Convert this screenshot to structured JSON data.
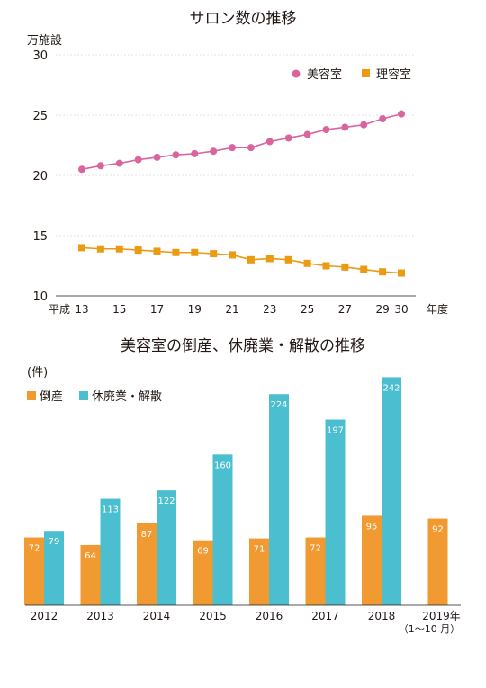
{
  "chart_data": [
    {
      "type": "line",
      "title": "サロン数の推移",
      "ylabel": "万施設",
      "xlabel": "年度",
      "era_label": "平成",
      "ylim": [
        10,
        30
      ],
      "yticks": [
        10,
        15,
        20,
        25,
        30
      ],
      "grid": true,
      "legend": "top-right",
      "x": [
        13,
        14,
        15,
        16,
        17,
        18,
        19,
        20,
        21,
        22,
        23,
        24,
        25,
        26,
        27,
        28,
        29,
        30
      ],
      "xtick_labels": [
        "13",
        "15",
        "17",
        "19",
        "21",
        "23",
        "25",
        "27",
        "29",
        "30"
      ],
      "series": [
        {
          "name": "美容室",
          "color": "#d9649e",
          "values": [
            20.5,
            20.8,
            21.0,
            21.3,
            21.5,
            21.7,
            21.8,
            22.0,
            22.3,
            22.3,
            22.8,
            23.1,
            23.4,
            23.8,
            24.0,
            24.2,
            24.7,
            25.1
          ]
        },
        {
          "name": "理容室",
          "color": "#eb9b12",
          "values": [
            14.0,
            13.9,
            13.9,
            13.8,
            13.7,
            13.6,
            13.6,
            13.5,
            13.4,
            13.0,
            13.1,
            13.0,
            12.7,
            12.5,
            12.4,
            12.2,
            12.0,
            11.9
          ]
        }
      ]
    },
    {
      "type": "bar",
      "title": "美容室の倒産、休廃業・解散の推移",
      "ylabel": "(件)",
      "legend": "top-left",
      "ylim": [
        0,
        250
      ],
      "categories": [
        "2012",
        "2013",
        "2014",
        "2015",
        "2016",
        "2017",
        "2018",
        "2019年"
      ],
      "category_note": "（1〜10 月）",
      "series": [
        {
          "name": "倒産",
          "color": "#f29a32",
          "values": [
            72,
            64,
            87,
            69,
            71,
            72,
            95,
            92
          ]
        },
        {
          "name": "休廃業・解散",
          "color": "#4bbfd0",
          "values": [
            79,
            113,
            122,
            160,
            224,
            197,
            242,
            null
          ]
        }
      ]
    }
  ]
}
